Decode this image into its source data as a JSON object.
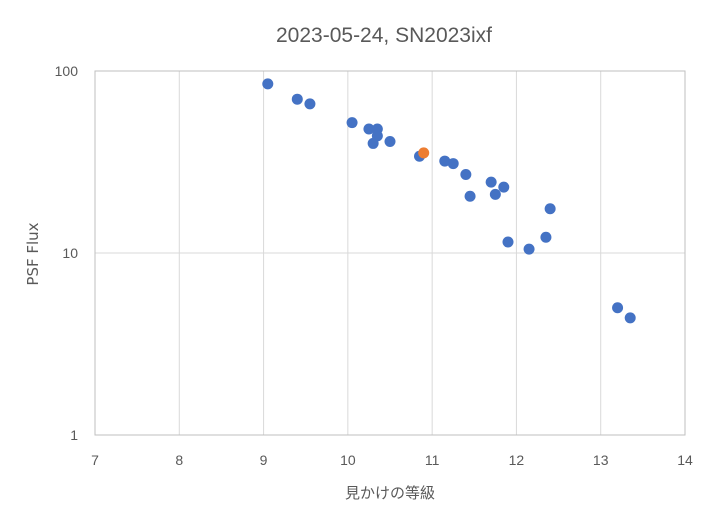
{
  "chart_data": {
    "type": "scatter",
    "title": "2023-05-24, SN2023ixf",
    "xlabel": "見かけの等級",
    "ylabel": "PSF Flux",
    "xlim": [
      7,
      14
    ],
    "ylim": [
      1,
      100
    ],
    "y_scale": "log",
    "x_ticks": [
      "7",
      "8",
      "9",
      "10",
      "11",
      "12",
      "13",
      "14"
    ],
    "y_ticks": [
      "1",
      "10",
      "100"
    ],
    "grid": true,
    "legend": "none",
    "colors": {
      "series_main": "#4472c4",
      "series_highlight": "#ed7d31"
    },
    "series": [
      {
        "color": "#4472c4",
        "points": [
          {
            "x": 9.05,
            "y": 85
          },
          {
            "x": 9.4,
            "y": 70
          },
          {
            "x": 9.55,
            "y": 66
          },
          {
            "x": 10.05,
            "y": 52
          },
          {
            "x": 10.25,
            "y": 48
          },
          {
            "x": 10.35,
            "y": 48
          },
          {
            "x": 10.35,
            "y": 44
          },
          {
            "x": 10.3,
            "y": 40
          },
          {
            "x": 10.5,
            "y": 41
          },
          {
            "x": 10.85,
            "y": 34
          },
          {
            "x": 11.15,
            "y": 32
          },
          {
            "x": 11.25,
            "y": 31
          },
          {
            "x": 11.4,
            "y": 27
          },
          {
            "x": 11.45,
            "y": 20.5
          },
          {
            "x": 11.7,
            "y": 24.5
          },
          {
            "x": 11.75,
            "y": 21
          },
          {
            "x": 11.85,
            "y": 23
          },
          {
            "x": 11.9,
            "y": 11.5
          },
          {
            "x": 12.15,
            "y": 10.5
          },
          {
            "x": 12.35,
            "y": 12.2
          },
          {
            "x": 12.4,
            "y": 17.5
          },
          {
            "x": 13.2,
            "y": 5
          },
          {
            "x": 13.35,
            "y": 4.4
          }
        ]
      },
      {
        "color": "#ed7d31",
        "points": [
          {
            "x": 10.9,
            "y": 35.5
          }
        ]
      }
    ]
  }
}
